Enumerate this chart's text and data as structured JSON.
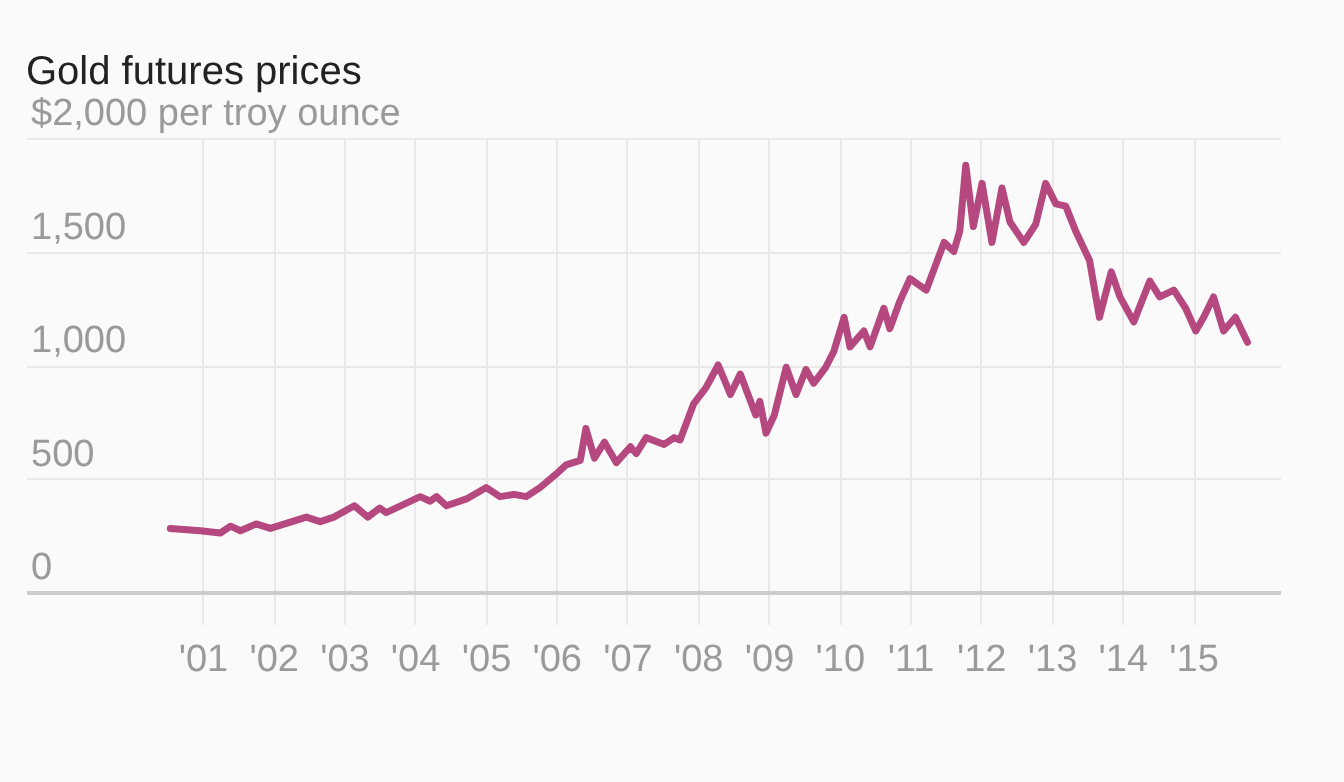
{
  "chart_data": {
    "type": "line",
    "title": "Gold futures prices",
    "x": [
      "2000-07-19",
      "2000-12-20",
      "2001-04-03",
      "2001-05-26",
      "2001-07-16",
      "2001-10-05",
      "2001-12-17",
      "2002-06-21",
      "2002-09-01",
      "2002-11-10",
      "2003-02-24",
      "2003-05-04",
      "2003-07-05",
      "2003-08-07",
      "2004-01-30",
      "2004-03-21",
      "2004-04-23",
      "2004-06-13",
      "2004-09-25",
      "2005-01-05",
      "2005-03-17",
      "2005-05-29",
      "2005-07-30",
      "2005-10-09",
      "2006-01-01",
      "2006-02-21",
      "2006-05-05",
      "2006-06-03",
      "2006-07-17",
      "2006-09-07",
      "2006-11-07",
      "2007-01-19",
      "2007-02-18",
      "2007-04-10",
      "2007-07-12",
      "2007-09-02",
      "2007-10-02",
      "2007-12-12",
      "2008-02-13",
      "2008-04-16",
      "2008-06-18",
      "2008-08-08",
      "2008-10-27",
      "2008-11-17",
      "2008-12-19",
      "2009-01-31",
      "2009-04-02",
      "2009-05-23",
      "2009-07-13",
      "2009-08-22",
      "2009-10-23",
      "2009-12-04",
      "2010-01-26",
      "2010-02-25",
      "2010-05-08",
      "2010-06-09",
      "2010-08-19",
      "2010-09-19",
      "2010-11-09",
      "2011-01-01",
      "2011-03-26",
      "2011-06-26",
      "2011-08-15",
      "2011-09-15",
      "2011-10-16",
      "2011-11-24",
      "2012-01-08",
      "2012-02-28",
      "2012-04-20",
      "2012-05-31",
      "2012-08-11",
      "2012-10-11",
      "2012-12-01",
      "2013-01-23",
      "2013-03-15",
      "2013-05-05",
      "2013-07-16",
      "2013-09-05",
      "2013-11-05",
      "2013-12-20",
      "2014-03-01",
      "2014-05-23",
      "2014-07-13",
      "2014-09-24",
      "2014-11-24",
      "2015-01-15",
      "2015-02-25",
      "2015-04-17",
      "2015-06-08",
      "2015-08-08",
      "2015-10-09"
    ],
    "series": [
      {
        "color": "#b5487f",
        "values": [
          280,
          270,
          260,
          290,
          270,
          300,
          280,
          330,
          310,
          330,
          380,
          330,
          370,
          350,
          420,
          400,
          420,
          380,
          410,
          460,
          420,
          430,
          420,
          460,
          520,
          560,
          580,
          720,
          590,
          660,
          570,
          640,
          610,
          680,
          650,
          680,
          670,
          830,
          900,
          1000,
          870,
          960,
          780,
          840,
          700,
          780,
          990,
          870,
          980,
          920,
          990,
          1060,
          1210,
          1080,
          1150,
          1080,
          1250,
          1160,
          1280,
          1380,
          1330,
          1540,
          1500,
          1590,
          1880,
          1610,
          1800,
          1540,
          1780,
          1630,
          1540,
          1620,
          1800,
          1710,
          1700,
          1590,
          1460,
          1210,
          1410,
          1300,
          1190,
          1370,
          1300,
          1330,
          1250,
          1150,
          1210,
          1300,
          1150,
          1210,
          1100
        ]
      }
    ],
    "xlim": [
      "1998-07-05",
      "2016-03-25"
    ],
    "xticks": [
      {
        "value": "2001-01-01",
        "label": "'01"
      },
      {
        "value": "2002-01-01",
        "label": "'02"
      },
      {
        "value": "2003-01-01",
        "label": "'03"
      },
      {
        "value": "2004-01-01",
        "label": "'04"
      },
      {
        "value": "2005-01-01",
        "label": "'05"
      },
      {
        "value": "2006-01-01",
        "label": "'06"
      },
      {
        "value": "2007-01-01",
        "label": "'07"
      },
      {
        "value": "2008-01-01",
        "label": "'08"
      },
      {
        "value": "2009-01-01",
        "label": "'09"
      },
      {
        "value": "2010-01-01",
        "label": "'10"
      },
      {
        "value": "2011-01-01",
        "label": "'11"
      },
      {
        "value": "2012-01-01",
        "label": "'12"
      },
      {
        "value": "2013-01-01",
        "label": "'13"
      },
      {
        "value": "2014-01-01",
        "label": "'14"
      },
      {
        "value": "2015-01-01",
        "label": "'15"
      }
    ],
    "ylim": [
      0,
      2000
    ],
    "yticks": [
      0,
      {
        "value": 500,
        "label": "500"
      },
      {
        "value": 1000,
        "label": "1,000"
      },
      {
        "value": 1500,
        "label": "1,500"
      },
      {
        "value": 2000,
        "label": "$2,000 per troy ounce"
      }
    ],
    "grid": true,
    "line_style": "solid"
  }
}
